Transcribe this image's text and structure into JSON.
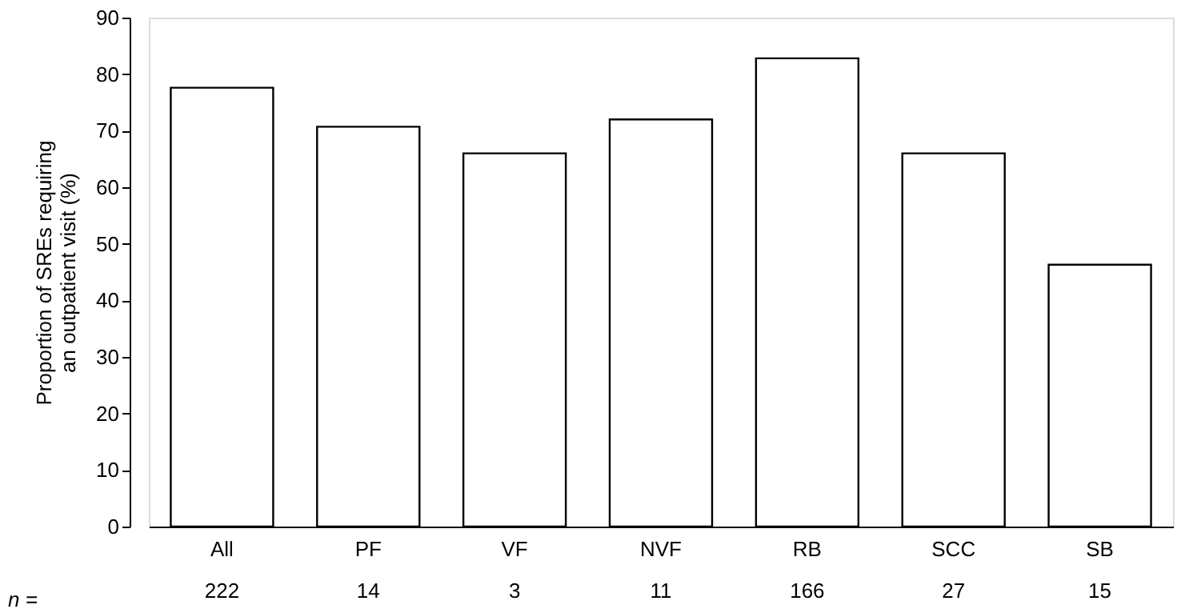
{
  "chart_data": {
    "type": "bar",
    "ylabel": "Proportion of SREs requiring\nan outpatient visit (%)",
    "categories": [
      "All\n222",
      "PF\n14",
      "VF\n3",
      "NVF\n11",
      "RB\n166",
      "SCC\n27",
      "SB\n15"
    ],
    "values": [
      77.6,
      70.7,
      66.0,
      72.0,
      82.8,
      66.0,
      46.3
    ],
    "color": "#ffffff",
    "ylim": [
      0,
      90
    ],
    "yticks": [
      0,
      10,
      20,
      30,
      40,
      50,
      60,
      70,
      80,
      90
    ],
    "grid": false,
    "annotations": [
      "n ="
    ]
  }
}
